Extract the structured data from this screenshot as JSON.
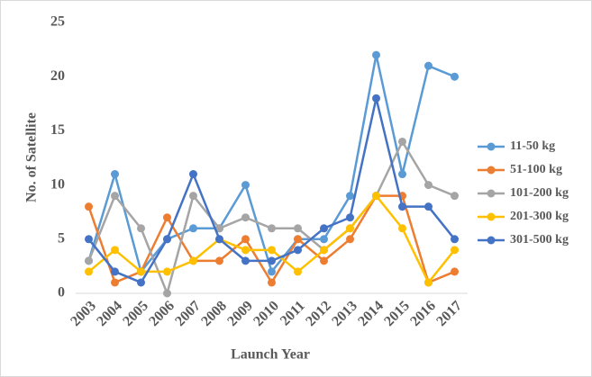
{
  "chart_data": {
    "type": "line",
    "xlabel": "Launch Year",
    "ylabel": "No. of Satellite",
    "categories": [
      "2003",
      "2004",
      "2005",
      "2006",
      "2007",
      "2008",
      "2009",
      "2010",
      "2011",
      "2012",
      "2013",
      "2014",
      "2015",
      "2016",
      "2017"
    ],
    "series": [
      {
        "name": "11-50 kg",
        "color": "#5b9bd5",
        "values": [
          3,
          11,
          2,
          5,
          6,
          6,
          10,
          2,
          5,
          5,
          9,
          22,
          11,
          21,
          20
        ]
      },
      {
        "name": "51-100 kg",
        "color": "#ed7d31",
        "values": [
          8,
          1,
          2,
          7,
          3,
          3,
          5,
          1,
          5,
          3,
          5,
          9,
          9,
          1,
          2
        ]
      },
      {
        "name": "101-200 kg",
        "color": "#a5a5a5",
        "values": [
          3,
          9,
          6,
          0,
          9,
          6,
          7,
          6,
          6,
          4,
          6,
          9,
          14,
          10,
          9
        ]
      },
      {
        "name": "201-300 kg",
        "color": "#ffc000",
        "values": [
          2,
          4,
          2,
          2,
          3,
          5,
          4,
          4,
          2,
          4,
          6,
          9,
          6,
          1,
          4
        ]
      },
      {
        "name": "301-500 kg",
        "color": "#4472c4",
        "values": [
          5,
          2,
          1,
          5,
          11,
          5,
          3,
          3,
          4,
          6,
          7,
          18,
          8,
          8,
          5
        ]
      }
    ],
    "ylim": [
      0,
      25
    ],
    "yticks": [
      0,
      5,
      10,
      15,
      20,
      25
    ],
    "grid": false,
    "legend": "right"
  }
}
